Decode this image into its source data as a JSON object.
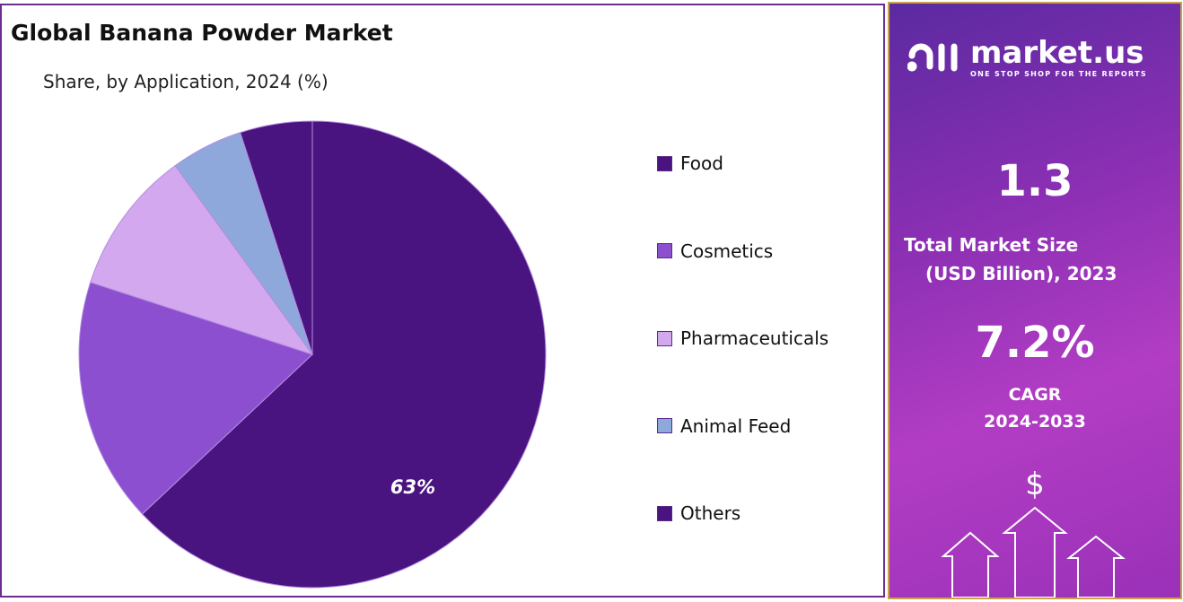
{
  "chart_data": {
    "type": "pie",
    "title": "Global Banana Powder Market",
    "subtitle": "Share, by Application, 2024 (%)",
    "categories": [
      "Food",
      "Cosmetics",
      "Pharmaceuticals",
      "Animal Feed",
      "Others"
    ],
    "values": [
      63,
      17,
      10,
      5,
      5
    ],
    "colors": [
      "#4a1480",
      "#8b4fd0",
      "#d4a8ee",
      "#8fa8dc",
      "#4a1480"
    ],
    "data_labels": [
      "63%",
      "",
      "",
      "",
      ""
    ],
    "legend_position": "right"
  },
  "sidebar": {
    "logo_name": "market.us",
    "logo_tagline": "ONE STOP SHOP FOR THE REPORTS",
    "market_size_value": "1.3",
    "market_size_label_1": "Total Market Size",
    "market_size_label_2": "(USD Billion), 2023",
    "cagr_value": "7.2%",
    "cagr_label": "CAGR",
    "cagr_period": "2024-2033",
    "dollar_symbol": "$"
  }
}
